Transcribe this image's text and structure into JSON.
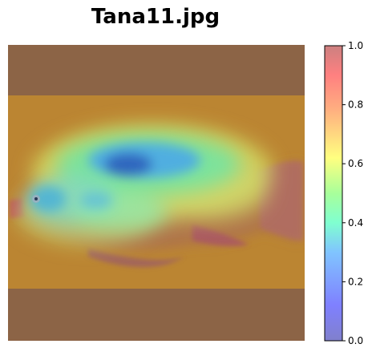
{
  "title": "Tana11.jpg",
  "chart_data": {
    "type": "heatmap",
    "title": "Tana11.jpg",
    "description_level": "image-with-heatmap-overlay",
    "colormap": "jet",
    "overlay_alpha": 0.45,
    "colorbar": {
      "vmin": 0.0,
      "vmax": 1.0,
      "ticks": [
        0.0,
        0.2,
        0.4,
        0.6,
        0.8,
        1.0
      ],
      "tick_labels": [
        "0.0",
        "0.2",
        "0.4",
        "0.6",
        "0.8",
        "1.0"
      ]
    },
    "axes_visible": false
  }
}
